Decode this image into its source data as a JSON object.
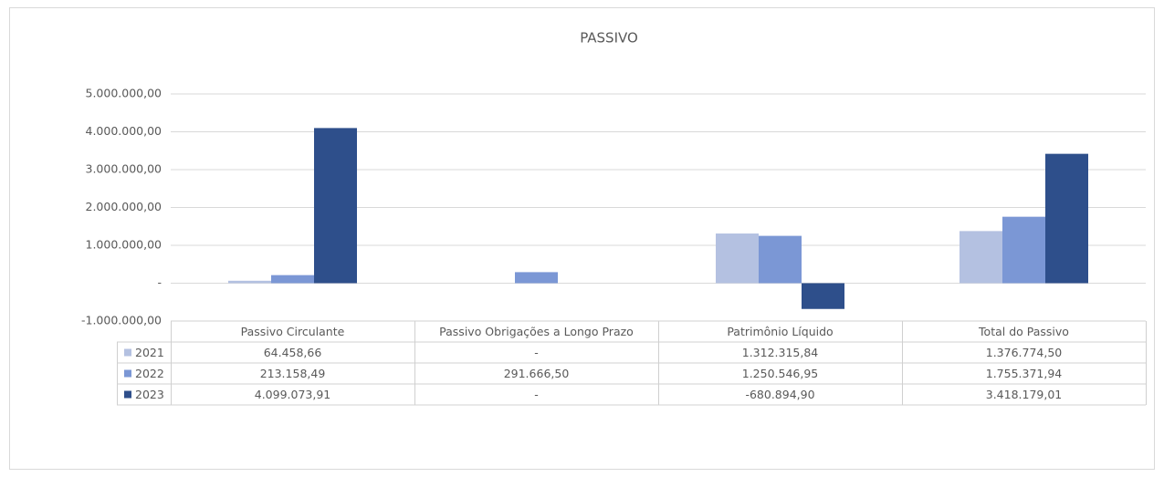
{
  "chart_data": {
    "type": "bar",
    "title": "PASSIVO",
    "categories": [
      "Passivo Circulante",
      "Passivo Obrigações a Longo Prazo",
      "Patrimônio Líquido",
      "Total do Passivo"
    ],
    "series": [
      {
        "name": "2021",
        "color": "#b4c1e1",
        "values": [
          64458.66,
          0,
          1312315.84,
          1376774.5
        ],
        "value_labels": [
          "64.458,66",
          "-",
          "1.312.315,84",
          "1.376.774,50"
        ]
      },
      {
        "name": "2022",
        "color": "#7b97d5",
        "values": [
          213158.49,
          291666.5,
          1250546.95,
          1755371.94
        ],
        "value_labels": [
          "213.158,49",
          "291.666,50",
          "1.250.546,95",
          "1.755.371,94"
        ]
      },
      {
        "name": "2023",
        "color": "#2e4f8b",
        "values": [
          4099073.91,
          0,
          -680894.9,
          3418179.01
        ],
        "value_labels": [
          "4.099.073,91",
          "-",
          "-680.894,90",
          "3.418.179,01"
        ]
      }
    ],
    "ylim": [
      -1000000,
      5000000
    ],
    "yticks": [
      {
        "value": -1000000,
        "label": "-1.000.000,00"
      },
      {
        "value": 0,
        "label": "-"
      },
      {
        "value": 1000000,
        "label": "1.000.000,00"
      },
      {
        "value": 2000000,
        "label": "2.000.000,00"
      },
      {
        "value": 3000000,
        "label": "3.000.000,00"
      },
      {
        "value": 4000000,
        "label": "4.000.000,00"
      },
      {
        "value": 5000000,
        "label": "5.000.000,00"
      }
    ],
    "grid": true
  }
}
